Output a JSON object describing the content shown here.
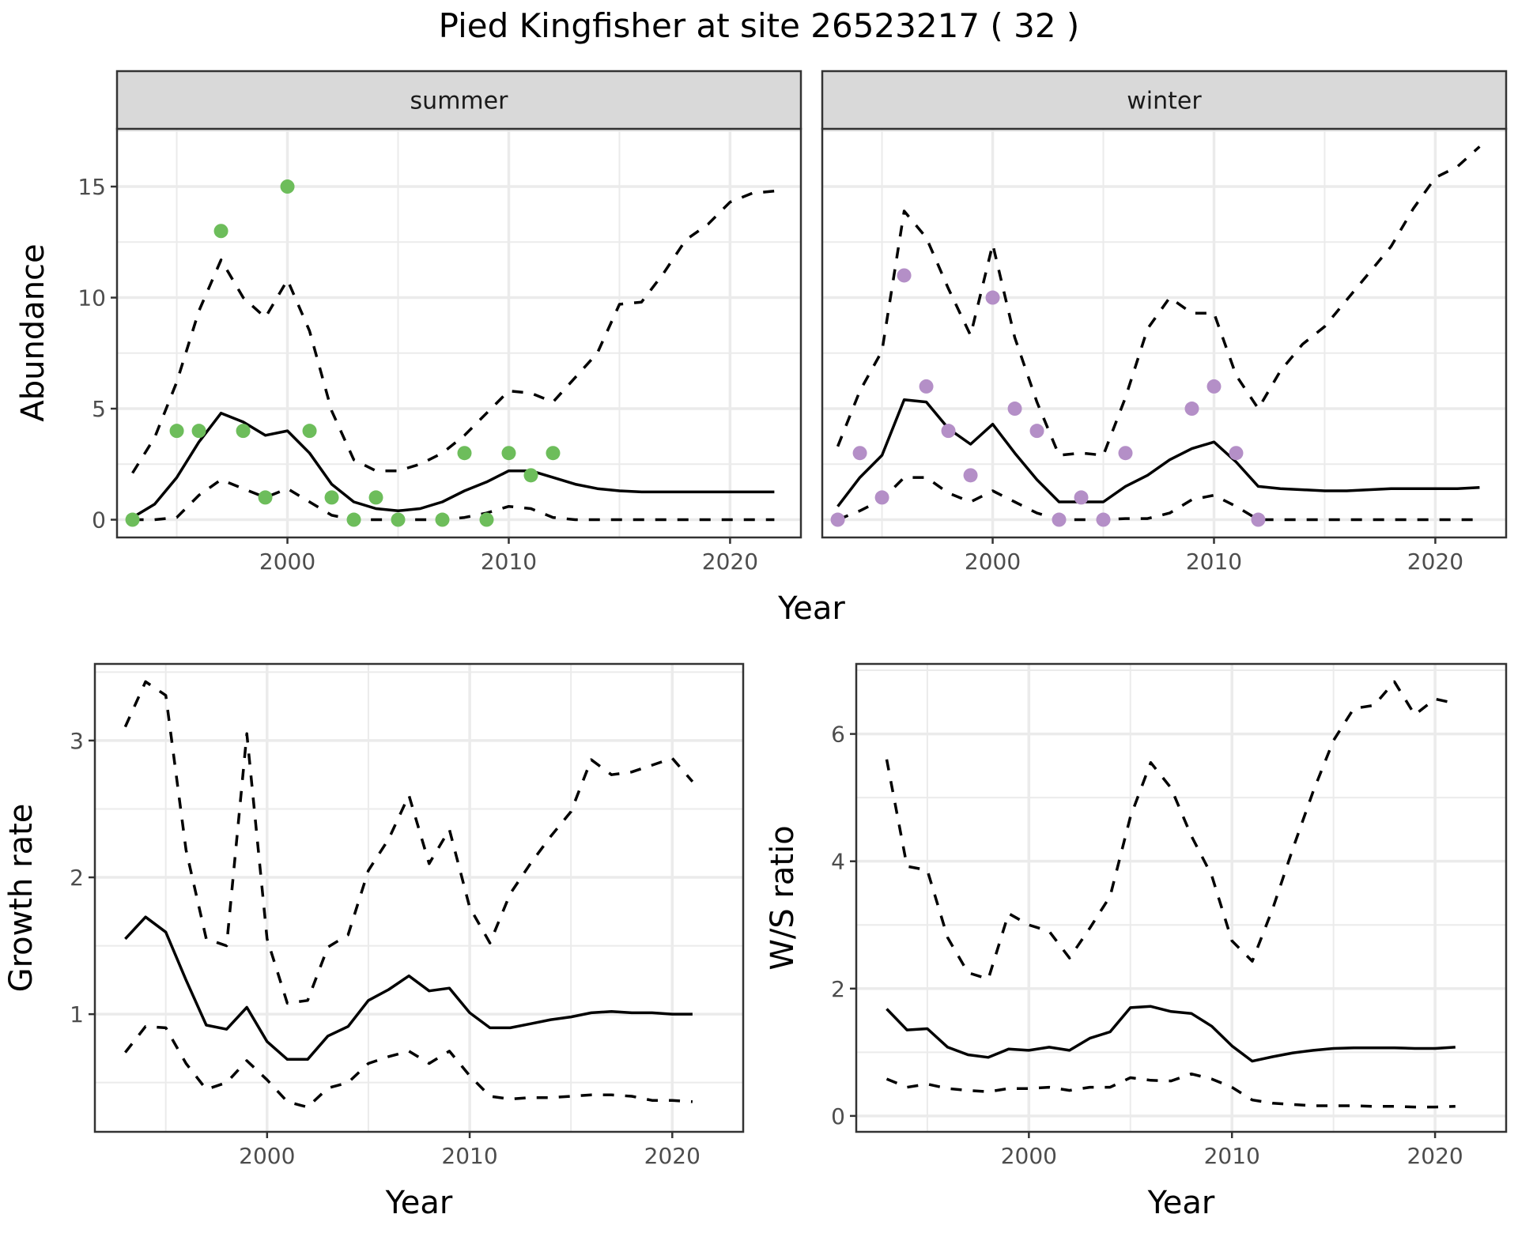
{
  "title": "Pied Kingfisher at site 26523217 ( 32 )",
  "colors": {
    "summer_points": "#6DBD5B",
    "winter_points": "#B48FC7",
    "line": "#000000",
    "grid": "#EBEBEB",
    "strip_bg": "#D9D9D9",
    "panel_border": "#333333"
  },
  "chart_data": [
    {
      "id": "abundance",
      "type": "line",
      "facets": [
        "summer",
        "winter"
      ],
      "xlabel": "Year",
      "ylabel": "Abundance",
      "xlim": [
        1992.3,
        2023.2
      ],
      "ylim": [
        -0.8,
        17.6
      ],
      "xticks": [
        2000,
        2010,
        2020
      ],
      "yticks": [
        0,
        5,
        10,
        15
      ],
      "grid": true,
      "panels": [
        {
          "facet": "summer",
          "point_color": "#6DBD5B",
          "points": {
            "x": [
              1993,
              1995,
              1996,
              1997,
              1998,
              1999,
              2000,
              2001,
              2002,
              2003,
              2004,
              2005,
              2007,
              2008,
              2009,
              2010,
              2011,
              2012
            ],
            "y": [
              0,
              4,
              4,
              13,
              4,
              1,
              15,
              4,
              1,
              0,
              1,
              0,
              0,
              3,
              0,
              3,
              2,
              3
            ]
          },
          "mean": {
            "x": [
              1993,
              1994,
              1995,
              1996,
              1997,
              1998,
              1999,
              2000,
              2001,
              2002,
              2003,
              2004,
              2005,
              2006,
              2007,
              2008,
              2009,
              2010,
              2011,
              2012,
              2013,
              2014,
              2015,
              2016,
              2017,
              2018,
              2019,
              2020,
              2021,
              2022
            ],
            "y": [
              0.1,
              0.7,
              1.9,
              3.5,
              4.8,
              4.4,
              3.8,
              4.0,
              3.0,
              1.6,
              0.8,
              0.5,
              0.4,
              0.5,
              0.8,
              1.3,
              1.7,
              2.2,
              2.2,
              1.9,
              1.6,
              1.4,
              1.3,
              1.25,
              1.25,
              1.25,
              1.25,
              1.25,
              1.25,
              1.25
            ]
          },
          "upper": {
            "x": [
              1993,
              1994,
              1995,
              1996,
              1997,
              1998,
              1999,
              2000,
              2001,
              2002,
              2003,
              2004,
              2005,
              2006,
              2007,
              2008,
              2009,
              2010,
              2011,
              2012,
              2013,
              2014,
              2015,
              2016,
              2017,
              2018,
              2019,
              2020,
              2021,
              2022
            ],
            "y": [
              2.1,
              3.7,
              6.2,
              9.4,
              11.7,
              10.0,
              9.1,
              10.8,
              8.5,
              4.9,
              2.7,
              2.2,
              2.2,
              2.5,
              3.0,
              3.8,
              4.8,
              5.8,
              5.7,
              5.3,
              6.4,
              7.5,
              9.7,
              9.8,
              11.1,
              12.6,
              13.3,
              14.3,
              14.7,
              14.8
            ]
          },
          "lower": {
            "x": [
              1993,
              1994,
              1995,
              1996,
              1997,
              1998,
              1999,
              2000,
              2001,
              2002,
              2003,
              2004,
              2005,
              2006,
              2007,
              2008,
              2009,
              2010,
              2011,
              2012,
              2013,
              2014,
              2015,
              2016,
              2017,
              2018,
              2019,
              2020,
              2021,
              2022
            ],
            "y": [
              0,
              0,
              0.1,
              1.1,
              1.8,
              1.4,
              1.0,
              1.4,
              0.8,
              0.2,
              0,
              0,
              0,
              0,
              0,
              0.1,
              0.3,
              0.6,
              0.5,
              0.1,
              0,
              0,
              0,
              0,
              0,
              0,
              0,
              0,
              0,
              0
            ]
          }
        },
        {
          "facet": "winter",
          "point_color": "#B48FC7",
          "points": {
            "x": [
              1993,
              1994,
              1995,
              1996,
              1997,
              1998,
              1999,
              2000,
              2001,
              2002,
              2003,
              2004,
              2005,
              2006,
              2009,
              2010,
              2011,
              2012
            ],
            "y": [
              0,
              3,
              1,
              11,
              6,
              4,
              2,
              10,
              5,
              4,
              0,
              1,
              0,
              3,
              5,
              6,
              3,
              0
            ]
          },
          "mean": {
            "x": [
              1993,
              1994,
              1995,
              1996,
              1997,
              1998,
              1999,
              2000,
              2001,
              2002,
              2003,
              2004,
              2005,
              2006,
              2007,
              2008,
              2009,
              2010,
              2011,
              2012,
              2013,
              2014,
              2015,
              2016,
              2017,
              2018,
              2019,
              2020,
              2021,
              2022
            ],
            "y": [
              0.6,
              1.9,
              2.9,
              5.4,
              5.3,
              4.1,
              3.4,
              4.3,
              3.0,
              1.8,
              0.8,
              0.8,
              0.8,
              1.5,
              2.0,
              2.7,
              3.2,
              3.5,
              2.6,
              1.5,
              1.4,
              1.35,
              1.3,
              1.3,
              1.35,
              1.4,
              1.4,
              1.4,
              1.4,
              1.45
            ]
          },
          "upper": {
            "x": [
              1993,
              1994,
              1995,
              1996,
              1997,
              1998,
              1999,
              2000,
              2001,
              2002,
              2003,
              2004,
              2005,
              2006,
              2007,
              2008,
              2009,
              2010,
              2011,
              2012,
              2013,
              2014,
              2015,
              2016,
              2017,
              2018,
              2019,
              2020,
              2021,
              2022
            ],
            "y": [
              3.3,
              5.8,
              7.6,
              13.9,
              12.7,
              10.4,
              8.3,
              12.4,
              8.2,
              5.3,
              2.9,
              3.0,
              2.9,
              5.5,
              8.6,
              10.0,
              9.3,
              9.3,
              6.5,
              5.0,
              6.7,
              7.9,
              8.7,
              9.9,
              11.1,
              12.3,
              14.0,
              15.4,
              15.9,
              16.8
            ]
          },
          "lower": {
            "x": [
              1993,
              1994,
              1995,
              1996,
              1997,
              1998,
              1999,
              2000,
              2001,
              2002,
              2003,
              2004,
              2005,
              2006,
              2007,
              2008,
              2009,
              2010,
              2011,
              2012,
              2013,
              2014,
              2015,
              2016,
              2017,
              2018,
              2019,
              2020,
              2021,
              2022
            ],
            "y": [
              0,
              0.4,
              0.9,
              1.9,
              1.9,
              1.2,
              0.8,
              1.3,
              0.8,
              0.3,
              0,
              0,
              0,
              0.05,
              0.05,
              0.3,
              0.9,
              1.1,
              0.6,
              0,
              0,
              0,
              0,
              0,
              0,
              0,
              0,
              0,
              0,
              0
            ]
          }
        }
      ]
    },
    {
      "id": "growth",
      "type": "line",
      "xlabel": "Year",
      "ylabel": "Growth rate",
      "xlim": [
        1991.5,
        2023.5
      ],
      "ylim": [
        0.14,
        3.56
      ],
      "xticks": [
        2000,
        2010,
        2020
      ],
      "yticks": [
        1,
        2,
        3
      ],
      "grid": true,
      "mean": {
        "x": [
          1993,
          1994,
          1995,
          1996,
          1997,
          1998,
          1999,
          2000,
          2001,
          2002,
          2003,
          2004,
          2005,
          2006,
          2007,
          2008,
          2009,
          2010,
          2011,
          2012,
          2013,
          2014,
          2015,
          2016,
          2017,
          2018,
          2019,
          2020,
          2021
        ],
        "y": [
          1.55,
          1.71,
          1.6,
          1.25,
          0.92,
          0.89,
          1.05,
          0.8,
          0.67,
          0.67,
          0.84,
          0.91,
          1.1,
          1.18,
          1.28,
          1.17,
          1.19,
          1.01,
          0.9,
          0.9,
          0.93,
          0.96,
          0.98,
          1.01,
          1.02,
          1.01,
          1.01,
          1.0,
          1.0
        ]
      },
      "upper": {
        "x": [
          1993,
          1994,
          1995,
          1996,
          1997,
          1998,
          1999,
          2000,
          2001,
          2002,
          2003,
          2004,
          2005,
          2006,
          2007,
          2008,
          2009,
          2010,
          2011,
          2012,
          2013,
          2014,
          2015,
          2016,
          2017,
          2018,
          2019,
          2020,
          2021
        ],
        "y": [
          3.1,
          3.43,
          3.33,
          2.2,
          1.55,
          1.5,
          3.05,
          1.55,
          1.08,
          1.1,
          1.49,
          1.58,
          2.05,
          2.28,
          2.6,
          2.1,
          2.35,
          1.78,
          1.52,
          1.88,
          2.1,
          2.3,
          2.48,
          2.86,
          2.75,
          2.77,
          2.82,
          2.87,
          2.7
        ]
      },
      "lower": {
        "x": [
          1993,
          1994,
          1995,
          1996,
          1997,
          1998,
          1999,
          2000,
          2001,
          2002,
          2003,
          2004,
          2005,
          2006,
          2007,
          2008,
          2009,
          2010,
          2011,
          2012,
          2013,
          2014,
          2015,
          2016,
          2017,
          2018,
          2019,
          2020,
          2021
        ],
        "y": [
          0.72,
          0.91,
          0.9,
          0.64,
          0.45,
          0.5,
          0.66,
          0.52,
          0.36,
          0.32,
          0.46,
          0.5,
          0.64,
          0.69,
          0.73,
          0.64,
          0.73,
          0.55,
          0.4,
          0.38,
          0.39,
          0.39,
          0.4,
          0.41,
          0.41,
          0.4,
          0.37,
          0.37,
          0.36
        ]
      }
    },
    {
      "id": "ws_ratio",
      "type": "line",
      "xlabel": "Year",
      "ylabel": "W/S ratio",
      "xlim": [
        1991.5,
        2023.5
      ],
      "ylim": [
        -0.25,
        7.1
      ],
      "xticks": [
        2000,
        2010,
        2020
      ],
      "yticks": [
        0,
        2,
        4,
        6
      ],
      "grid": true,
      "mean": {
        "x": [
          1993,
          1994,
          1995,
          1996,
          1997,
          1998,
          1999,
          2000,
          2001,
          2002,
          2003,
          2004,
          2005,
          2006,
          2007,
          2008,
          2009,
          2010,
          2011,
          2012,
          2013,
          2014,
          2015,
          2016,
          2017,
          2018,
          2019,
          2020,
          2021
        ],
        "y": [
          1.68,
          1.35,
          1.37,
          1.08,
          0.96,
          0.92,
          1.05,
          1.03,
          1.08,
          1.03,
          1.22,
          1.32,
          1.7,
          1.72,
          1.64,
          1.61,
          1.41,
          1.1,
          0.86,
          0.93,
          0.99,
          1.03,
          1.06,
          1.07,
          1.07,
          1.07,
          1.06,
          1.06,
          1.08
        ]
      },
      "upper": {
        "x": [
          1993,
          1994,
          1995,
          1996,
          1997,
          1998,
          1999,
          2000,
          2001,
          2002,
          2003,
          2004,
          2005,
          2006,
          2007,
          2008,
          2009,
          2010,
          2011,
          2012,
          2013,
          2014,
          2015,
          2016,
          2017,
          2018,
          2019,
          2020,
          2021
        ],
        "y": [
          5.6,
          3.92,
          3.86,
          2.8,
          2.25,
          2.15,
          3.18,
          3.0,
          2.9,
          2.48,
          2.95,
          3.45,
          4.7,
          5.55,
          5.15,
          4.4,
          3.78,
          2.75,
          2.43,
          3.25,
          4.2,
          5.1,
          5.9,
          6.4,
          6.45,
          6.82,
          6.3,
          6.55,
          6.48
        ]
      },
      "lower": {
        "x": [
          1993,
          1994,
          1995,
          1996,
          1997,
          1998,
          1999,
          2000,
          2001,
          2002,
          2003,
          2004,
          2005,
          2006,
          2007,
          2008,
          2009,
          2010,
          2011,
          2012,
          2013,
          2014,
          2015,
          2016,
          2017,
          2018,
          2019,
          2020,
          2021
        ],
        "y": [
          0.58,
          0.45,
          0.5,
          0.43,
          0.4,
          0.38,
          0.43,
          0.43,
          0.45,
          0.4,
          0.45,
          0.45,
          0.6,
          0.56,
          0.55,
          0.66,
          0.58,
          0.45,
          0.25,
          0.2,
          0.18,
          0.16,
          0.16,
          0.16,
          0.15,
          0.15,
          0.14,
          0.14,
          0.15
        ]
      }
    }
  ]
}
